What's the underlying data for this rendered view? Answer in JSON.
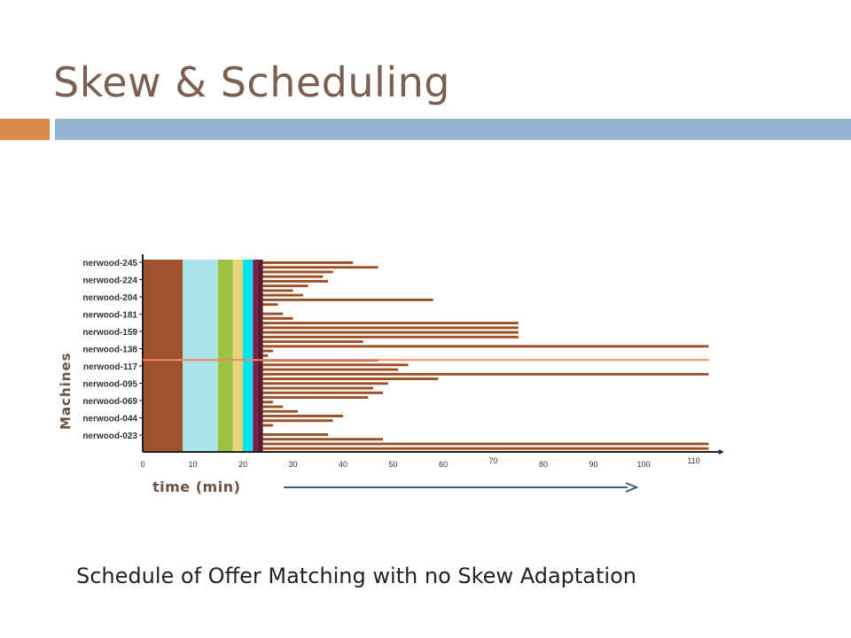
{
  "slide": {
    "title": "Skew & Scheduling",
    "caption": "Schedule of Offer Matching with no Skew Adaptation"
  },
  "colors": {
    "title": "#7a5f52",
    "accent_bar": "#d98a4b",
    "header_bar": "#93b4d4",
    "task_bar": "#9c4f24",
    "highlight_line": "#f08a5d",
    "arrow": "#3a5d7e"
  },
  "chart_data": {
    "type": "bar",
    "orientation": "horizontal-gantt",
    "title": "",
    "xlabel": "time (min)",
    "ylabel": "Machines",
    "xlim": [
      0,
      115
    ],
    "x_ticks": [
      0,
      10,
      20,
      30,
      40,
      50,
      60,
      70,
      80,
      90,
      100,
      110
    ],
    "y_tick_labels": [
      "nerwood-245",
      "nerwood-224",
      "nerwood-204",
      "nerwood-181",
      "nerwood-159",
      "nerwood-138",
      "nerwood-117",
      "nerwood-095",
      "nerwood-069",
      "nerwood-044",
      "nerwood-023"
    ],
    "phases": [
      {
        "start": 0,
        "end": 8,
        "color": "#a0522d"
      },
      {
        "start": 8,
        "end": 15,
        "color": "#a8e4ea"
      },
      {
        "start": 15,
        "end": 18,
        "color": "#9bc143"
      },
      {
        "start": 18,
        "end": 20,
        "color": "#e8d27a"
      },
      {
        "start": 20,
        "end": 22,
        "color": "#00e5f0"
      },
      {
        "start": 22,
        "end": 23,
        "color": "#7b1f4a"
      },
      {
        "start": 23,
        "end": 24,
        "color": "#5a1a33"
      }
    ],
    "task_end_times": [
      42,
      47,
      38,
      36,
      37,
      33,
      30,
      32,
      58,
      27,
      24,
      28,
      30,
      75,
      75,
      75,
      75,
      44,
      113,
      26,
      25,
      47,
      53,
      51,
      113,
      59,
      49,
      46,
      48,
      45,
      26,
      28,
      31,
      40,
      38,
      26,
      24,
      37,
      48,
      113,
      113
    ],
    "highlight_y": 0.535
  }
}
